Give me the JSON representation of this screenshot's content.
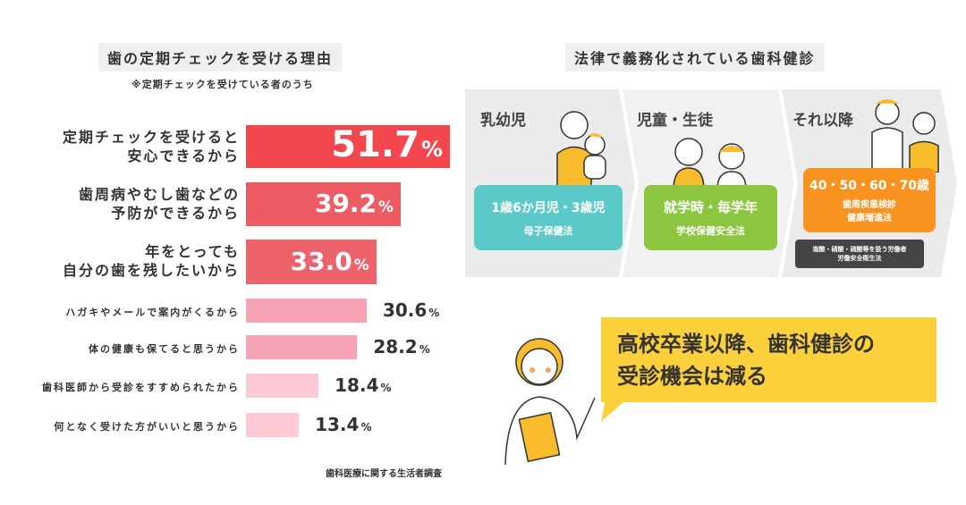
{
  "left": {
    "title": "歯の定期チェックを受ける理由",
    "subtitle": "※定期チェックを受けている者のうち",
    "source": "歯科医療に関する生活者調査"
  },
  "chart_data": {
    "type": "bar",
    "orientation": "horizontal",
    "title": "歯の定期チェックを受ける理由",
    "unit": "%",
    "categories": [
      "定期チェックを受けると安心できるから",
      "歯周病やむし歯などの予防ができるから",
      "年をとっても自分の歯を残したいから",
      "ハガキやメールで案内がくるから",
      "体の健康も保てると思うから",
      "歯科医師から受診をすすめられたから",
      "何となく受けた方がいいと思うから"
    ],
    "label_lines": [
      [
        "定期チェックを受けると",
        "安心できるから"
      ],
      [
        "歯周病やむし歯などの",
        "予防ができるから"
      ],
      [
        "年をとっても",
        "自分の歯を残したいから"
      ],
      [
        "ハガキやメールで案内がくるから"
      ],
      [
        "体の健康も保てると思うから"
      ],
      [
        "歯科医師から受診をすすめられたから"
      ],
      [
        "何となく受けた方がいいと思うから"
      ]
    ],
    "values": [
      51.7,
      39.2,
      33.0,
      30.6,
      28.2,
      18.4,
      13.4
    ],
    "value_labels": [
      "51.7",
      "39.2",
      "33.0",
      "30.6",
      "28.2",
      "18.4",
      "13.4"
    ],
    "colors": [
      "#f2474c",
      "#ef5b63",
      "#ee636b",
      "#f7a3b5",
      "#f7a3b5",
      "#fcc9d4",
      "#fcc9d4"
    ],
    "xlim": [
      0,
      60
    ]
  },
  "right": {
    "title": "法律で義務化されている歯科健診",
    "stages": [
      {
        "name": "乳幼児",
        "when": "1歳6か月児・3歳児",
        "law": "母子保健法",
        "color": "#5ccac8"
      },
      {
        "name": "児童・生徒",
        "when": "就学時・毎学年",
        "law": "学校保健安全法",
        "color": "#8cc63f"
      },
      {
        "name": "それ以降",
        "when": "40・50・60・70歳",
        "law_lines": [
          "歯周疾患検診",
          "健康増進法"
        ],
        "color": "#f7931e",
        "note_lines": [
          "塩酸・硝酸・硫酸等を扱う労働者",
          "労働安全衛生法"
        ]
      }
    ],
    "callout_lines": [
      "高校卒業以降、歯科健診の",
      "受診機会は減る"
    ]
  }
}
